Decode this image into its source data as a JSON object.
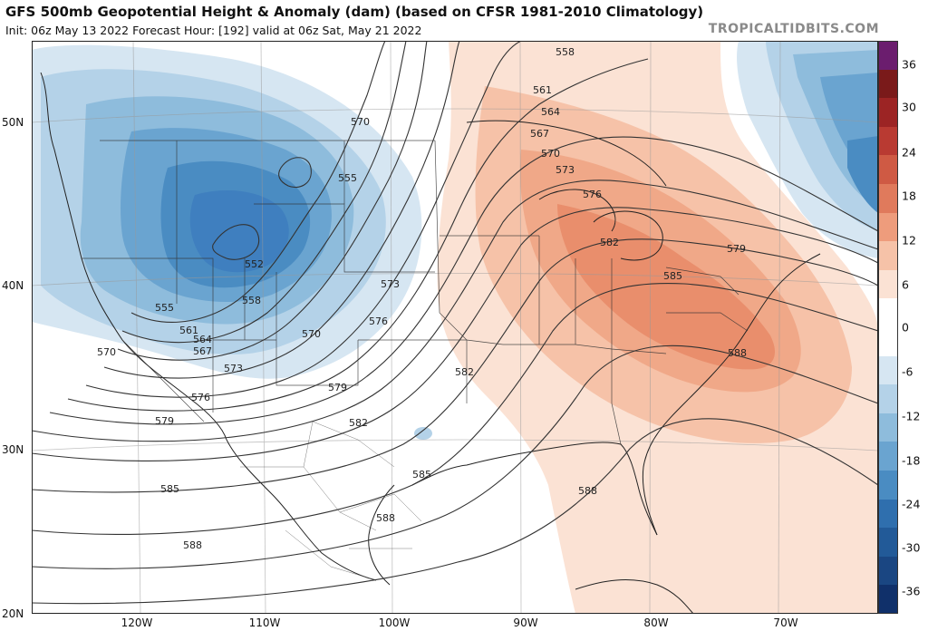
{
  "header": {
    "title": "GFS 500mb Geopotential Height & Anomaly (dam) (based on CFSR 1981-2010 Climatology)",
    "subtitle": "Init: 06z May 13 2022   Forecast Hour: [192]   valid at 06z Sat, May 21 2022",
    "credit": "TROPICALTIDBITS.COM"
  },
  "colorbar": {
    "labels": [
      "36",
      "30",
      "24",
      "18",
      "12",
      "6",
      "0",
      "-6",
      "-12",
      "-18",
      "-24",
      "-30",
      "-36"
    ],
    "colors": [
      "#6b1d6e",
      "#7a1a1a",
      "#9c2424",
      "#b93a32",
      "#cf5a44",
      "#e07a5c",
      "#ee9c7c",
      "#f6c2a8",
      "#fbe2d4",
      "#ffffff",
      "#ffffff",
      "#d6e6f2",
      "#b4d2e8",
      "#8ebcdc",
      "#6aa4d0",
      "#4a8cc2",
      "#2f6fae",
      "#225a98",
      "#1a4682",
      "#10306a"
    ]
  },
  "axes": {
    "lat_labels": [
      "50N",
      "40N",
      "30N",
      "20N"
    ],
    "lon_labels": [
      "120W",
      "110W",
      "100W",
      "90W",
      "80W",
      "70W"
    ]
  },
  "contours": {
    "labels": [
      "552",
      "555",
      "555",
      "558",
      "558",
      "561",
      "561",
      "564",
      "564",
      "567",
      "567",
      "570",
      "570",
      "570",
      "570",
      "573",
      "573",
      "573",
      "576",
      "576",
      "576",
      "579",
      "579",
      "579",
      "582",
      "582",
      "582",
      "585",
      "585",
      "585",
      "588",
      "588",
      "588",
      "588"
    ]
  },
  "anomaly_colors": {
    "neg_light": "#cfe2f1",
    "neg_mid": "#a9cbe6",
    "neg_strong": "#7fb2db",
    "neg_deep": "#5a97cc",
    "neg_core": "#3f7fbf",
    "pos_light": "#fbe0d0",
    "pos_mid": "#f6c4aa",
    "pos_strong": "#f0a888",
    "pos_core": "#e98e6c"
  }
}
